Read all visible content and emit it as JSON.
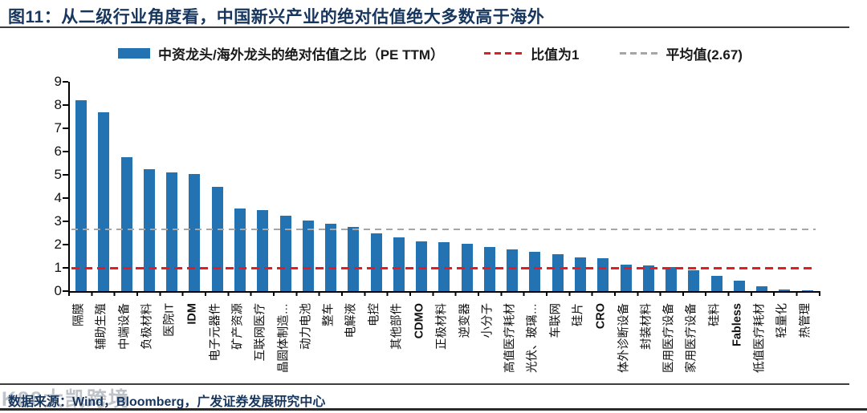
{
  "title": "图11：从二级行业角度看，中国新兴产业的绝对估值绝大多数高于海外",
  "legend": {
    "bar_label": "中资龙头/海外龙头的绝对估值之比（PE TTM）",
    "ratio_line_label": "比值为1",
    "mean_line_label": "平均值(2.67)"
  },
  "footer": {
    "source": "数据来源：Wind，Bloomberg，广发证券发展研究中心",
    "watermark": "K88大凯跨境"
  },
  "colors": {
    "bar": "#2373B3",
    "ratio_line": "#E11D23",
    "mean_line": "#A6A6A6",
    "title_text": "#17365D",
    "source_text": "#17365D",
    "axis": "#000000"
  },
  "chart_data": {
    "type": "bar",
    "title": "中资龙头/海外龙头的绝对估值之比（PE TTM）",
    "xlabel": "",
    "ylabel": "",
    "ylim": [
      0,
      9
    ],
    "yticks": [
      0,
      1,
      2,
      3,
      4,
      5,
      6,
      7,
      8,
      9
    ],
    "grid": false,
    "legend_position": "top",
    "categories": [
      "隔膜",
      "辅助生殖",
      "中端设备",
      "负极材料",
      "医院IT",
      "IDM",
      "电子元器件",
      "矿产资源",
      "互联网医疗",
      "晶圆体制造…",
      "动力电池",
      "整车",
      "电解液",
      "电控",
      "其他部件",
      "CDMO",
      "正极材料",
      "逆变器",
      "小分子",
      "高值医疗耗材",
      "光伏、玻璃…",
      "车联网",
      "硅片",
      "CRO",
      "体外诊断设备",
      "封装材料",
      "医用医疗设备",
      "家用医疗设备",
      "硅料",
      "Fabless",
      "低值医疗耗材",
      "轻量化",
      "热管理"
    ],
    "values": [
      8.2,
      7.7,
      5.75,
      5.25,
      5.1,
      5.05,
      4.5,
      3.55,
      3.5,
      3.25,
      3.05,
      2.9,
      2.75,
      2.5,
      2.3,
      2.15,
      2.1,
      2.05,
      1.9,
      1.8,
      1.7,
      1.6,
      1.45,
      1.4,
      1.15,
      1.1,
      1.05,
      0.9,
      0.65,
      0.45,
      0.2,
      0.07,
      0.02
    ],
    "reference_lines": [
      {
        "name": "ratio",
        "label": "比值为1",
        "value": 1.0,
        "style": "dashed",
        "color": "#E11D23"
      },
      {
        "name": "mean",
        "label": "平均值(2.67)",
        "value": 2.67,
        "style": "dashed",
        "color": "#A6A6A6"
      }
    ]
  }
}
